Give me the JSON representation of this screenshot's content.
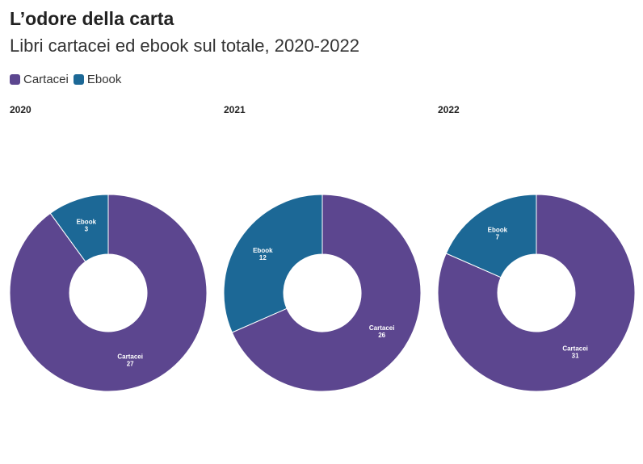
{
  "header": {
    "title": "L’odore della carta",
    "subtitle": "Libri cartacei ed ebook sul totale, 2020-2022"
  },
  "legend": [
    {
      "label": "Cartacei",
      "color": "#5c468f"
    },
    {
      "label": "Ebook",
      "color": "#1c6896"
    }
  ],
  "chart_data": {
    "type": "pie",
    "variant": "donut",
    "title": "L’odore della carta",
    "subtitle": "Libri cartacei ed ebook sul totale, 2020-2022",
    "categories": [
      "Cartacei",
      "Ebook"
    ],
    "colors": {
      "Cartacei": "#5c468f",
      "Ebook": "#1c6896"
    },
    "legend_position": "top-left",
    "panels": [
      {
        "title": "2020",
        "values": {
          "Cartacei": 27,
          "Ebook": 3
        }
      },
      {
        "title": "2021",
        "values": {
          "Cartacei": 26,
          "Ebook": 12
        }
      },
      {
        "title": "2022",
        "values": {
          "Cartacei": 31,
          "Ebook": 7
        }
      }
    ]
  }
}
